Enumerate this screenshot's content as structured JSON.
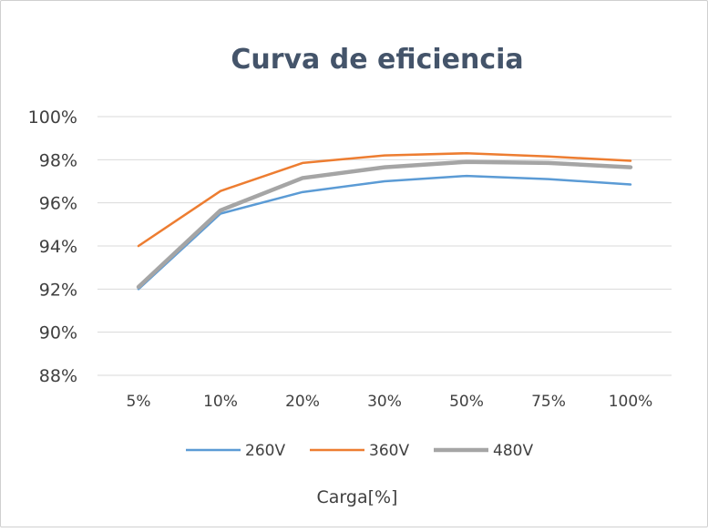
{
  "chart_data": {
    "type": "line",
    "title": "Curva de eficiencia",
    "xlabel": "Carga[%]",
    "ylabel": "",
    "categories": [
      "5%",
      "10%",
      "20%",
      "30%",
      "50%",
      "75%",
      "100%"
    ],
    "ylim": [
      88,
      100
    ],
    "yticks": [
      88,
      90,
      92,
      94,
      96,
      98,
      100
    ],
    "ytick_labels": [
      "88%",
      "90%",
      "92%",
      "94%",
      "96%",
      "98%",
      "100%"
    ],
    "grid": true,
    "legend_position": "bottom",
    "series": [
      {
        "name": "260V",
        "color": "#5b9bd5",
        "values": [
          92.0,
          95.5,
          96.5,
          97.0,
          97.25,
          97.1,
          96.85
        ]
      },
      {
        "name": "360V",
        "color": "#ed7d31",
        "values": [
          94.0,
          96.55,
          97.85,
          98.2,
          98.3,
          98.15,
          97.95
        ]
      },
      {
        "name": "480V",
        "color": "#a5a5a5",
        "values": [
          92.1,
          95.65,
          97.15,
          97.65,
          97.9,
          97.85,
          97.65
        ]
      }
    ]
  }
}
